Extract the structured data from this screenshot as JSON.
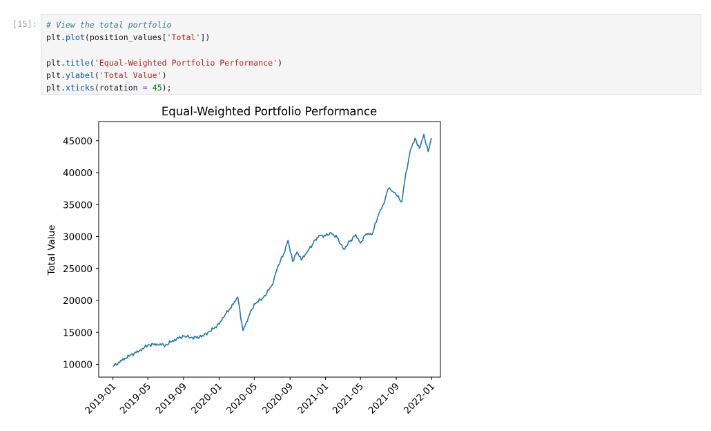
{
  "cell": {
    "prompt": "[15]:",
    "lines": [
      [
        {
          "t": "# View the total portfolio",
          "c": "cm"
        }
      ],
      [
        {
          "t": "plt",
          "c": ""
        },
        {
          "t": ".",
          "c": ""
        },
        {
          "t": "plot",
          "c": "fn"
        },
        {
          "t": "(position_values[",
          "c": ""
        },
        {
          "t": "'Total'",
          "c": "st"
        },
        {
          "t": "])",
          "c": ""
        }
      ],
      [],
      [
        {
          "t": "plt",
          "c": ""
        },
        {
          "t": ".",
          "c": ""
        },
        {
          "t": "title",
          "c": "fn"
        },
        {
          "t": "(",
          "c": ""
        },
        {
          "t": "'Equal-Weighted Portfolio Performance'",
          "c": "st"
        },
        {
          "t": ")",
          "c": ""
        }
      ],
      [
        {
          "t": "plt",
          "c": ""
        },
        {
          "t": ".",
          "c": ""
        },
        {
          "t": "ylabel",
          "c": "fn"
        },
        {
          "t": "(",
          "c": ""
        },
        {
          "t": "'Total Value'",
          "c": "st"
        },
        {
          "t": ")",
          "c": ""
        }
      ],
      [
        {
          "t": "plt",
          "c": ""
        },
        {
          "t": ".",
          "c": ""
        },
        {
          "t": "xticks",
          "c": "fn"
        },
        {
          "t": "(rotation ",
          "c": ""
        },
        {
          "t": "=",
          "c": "op"
        },
        {
          "t": " ",
          "c": ""
        },
        {
          "t": "45",
          "c": "nu"
        },
        {
          "t": ");",
          "c": ""
        }
      ]
    ]
  },
  "chart_data": {
    "type": "line",
    "title": "Equal-Weighted Portfolio Performance",
    "xlabel": "",
    "ylabel": "Total Value",
    "line_color": "#1f77b4",
    "xlim": [
      "2018-11-13",
      "2022-01-31"
    ],
    "ylim": [
      8000,
      48000
    ],
    "x_ticks": [
      "2019-01",
      "2019-05",
      "2019-09",
      "2020-01",
      "2020-05",
      "2020-09",
      "2021-01",
      "2021-05",
      "2021-09",
      "2022-01"
    ],
    "y_ticks": [
      10000,
      15000,
      20000,
      25000,
      30000,
      35000,
      40000,
      45000
    ],
    "grid": false,
    "series": [
      {
        "x": [
          "2019-01-02",
          "2019-02-01",
          "2019-03-01",
          "2019-04-01",
          "2019-05-01",
          "2019-06-01",
          "2019-07-01",
          "2019-08-01",
          "2019-09-01",
          "2019-10-01",
          "2019-11-01",
          "2019-12-01",
          "2020-01-02",
          "2020-01-21",
          "2020-02-19",
          "2020-03-05",
          "2020-03-23",
          "2020-04-15",
          "2020-05-01",
          "2020-06-01",
          "2020-07-01",
          "2020-07-20",
          "2020-08-10",
          "2020-08-25",
          "2020-09-10",
          "2020-09-25",
          "2020-10-10",
          "2020-10-30",
          "2020-11-20",
          "2020-12-10",
          "2021-01-01",
          "2021-01-20",
          "2021-02-10",
          "2021-03-05",
          "2021-03-25",
          "2021-04-15",
          "2021-05-01",
          "2021-05-20",
          "2021-06-10",
          "2021-07-01",
          "2021-07-20",
          "2021-08-05",
          "2021-08-20",
          "2021-09-05",
          "2021-09-20",
          "2021-10-01",
          "2021-10-20",
          "2021-11-05",
          "2021-11-20",
          "2021-12-05",
          "2021-12-20",
          "2021-12-31"
        ],
        "y": [
          9700,
          10600,
          11400,
          12100,
          13000,
          13200,
          13000,
          13900,
          14400,
          14200,
          14300,
          15200,
          16300,
          17700,
          19400,
          20500,
          15300,
          17800,
          19500,
          20400,
          22400,
          25200,
          27300,
          29400,
          26100,
          27600,
          26300,
          27600,
          29000,
          30200,
          30100,
          30600,
          29800,
          28000,
          29200,
          30300,
          29000,
          30400,
          30300,
          33300,
          35100,
          37500,
          37100,
          36300,
          35400,
          38900,
          43600,
          45400,
          43800,
          46000,
          43300,
          45400
        ]
      }
    ]
  }
}
